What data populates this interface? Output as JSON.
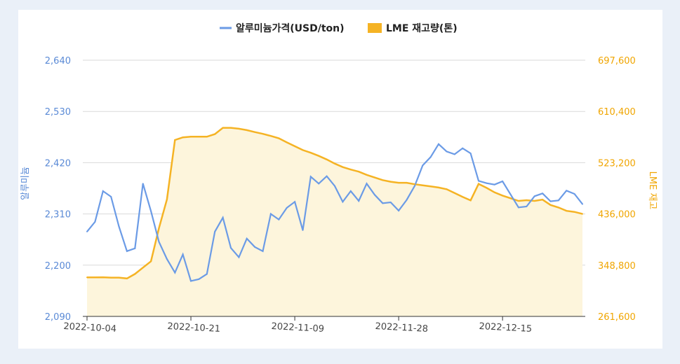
{
  "chart_data": {
    "type": "line",
    "legend": [
      "알루미늄가격(USD/ton)",
      "LME 재고량(톤)"
    ],
    "legend_position": "top-center",
    "ylabel": "알루미늄",
    "y2label": "LME 재고",
    "ylim": [
      2090,
      2640
    ],
    "y2lim": [
      261600,
      697600
    ],
    "yticks": [
      "2,090",
      "2,200",
      "2,310",
      "2,420",
      "2,530",
      "2,640"
    ],
    "y2ticks": [
      "261,600",
      "348,800",
      "436,000",
      "523,200",
      "610,400",
      "697,600"
    ],
    "xticks": [
      "2022-10-04",
      "2022-10-21",
      "2022-11-09",
      "2022-11-28",
      "2022-12-15"
    ],
    "grid": true,
    "colors": {
      "price": "#6b9be6",
      "inventory": "#f5b324",
      "inventory_fill": "#fdf5dc"
    },
    "series": [
      {
        "name": "알루미늄가격(USD/ton)",
        "axis": "left",
        "values": [
          2272,
          2293,
          2359,
          2347,
          2283,
          2230,
          2236,
          2375,
          2316,
          2250,
          2213,
          2184,
          2223,
          2166,
          2170,
          2181,
          2272,
          2302,
          2237,
          2217,
          2257,
          2239,
          2230,
          2310,
          2298,
          2323,
          2336,
          2275,
          2390,
          2375,
          2391,
          2370,
          2336,
          2359,
          2338,
          2375,
          2351,
          2333,
          2335,
          2317,
          2340,
          2370,
          2414,
          2432,
          2460,
          2444,
          2438,
          2451,
          2440,
          2381,
          2376,
          2373,
          2380,
          2352,
          2324,
          2326,
          2348,
          2354,
          2337,
          2339,
          2360,
          2353,
          2331
        ]
      },
      {
        "name": "LME 재고량(톤)",
        "axis": "right",
        "values": [
          328000,
          328000,
          328200,
          327600,
          327600,
          326200,
          333800,
          344600,
          355400,
          411800,
          460800,
          561800,
          566300,
          567400,
          567400,
          567400,
          571800,
          582500,
          582500,
          581000,
          578600,
          575300,
          572300,
          568700,
          564800,
          557700,
          551200,
          544600,
          540100,
          534700,
          528700,
          521700,
          515700,
          511500,
          508000,
          502500,
          498000,
          493500,
          490800,
          489000,
          489000,
          486500,
          484700,
          482900,
          480900,
          478000,
          471500,
          465000,
          459000,
          487100,
          480300,
          472700,
          467200,
          462700,
          458200,
          459400,
          458200,
          460300,
          451200,
          447000,
          441200,
          439400,
          436000
        ]
      }
    ]
  }
}
